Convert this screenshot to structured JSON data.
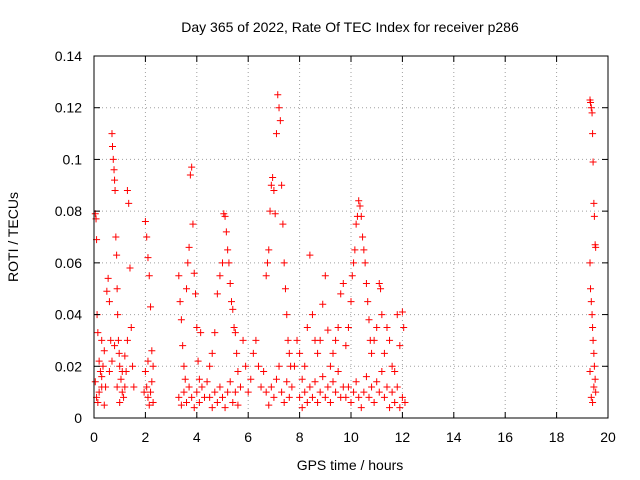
{
  "chart_data": {
    "type": "scatter",
    "title": "Day 365 of 2022, Rate Of TEC Index for receiver p286",
    "xlabel": "GPS time / hours",
    "ylabel": "ROTI / TECUs",
    "xlim": [
      0,
      20
    ],
    "ylim": [
      0,
      0.14
    ],
    "x_ticks": [
      0,
      2,
      4,
      6,
      8,
      10,
      12,
      14,
      16,
      18,
      20
    ],
    "y_ticks": [
      0,
      0.02,
      0.04,
      0.06,
      0.08,
      0.1,
      0.12,
      0.14
    ],
    "x_tick_labels": [
      "0",
      "2",
      "4",
      "6",
      "8",
      "10",
      "12",
      "14",
      "16",
      "18",
      "20"
    ],
    "y_tick_labels": [
      "0",
      "0.02",
      "0.04",
      "0.06",
      "0.08",
      "0.1",
      "0.12",
      "0.14"
    ],
    "grid": true,
    "marker": "+",
    "color": "#ff0000",
    "points": [
      [
        0.05,
        0.079
      ],
      [
        0.08,
        0.077
      ],
      [
        0.1,
        0.069
      ],
      [
        0.12,
        0.04
      ],
      [
        0.15,
        0.033
      ],
      [
        0.2,
        0.022
      ],
      [
        0.25,
        0.018
      ],
      [
        0.3,
        0.012
      ],
      [
        0.05,
        0.014
      ],
      [
        0.1,
        0.008
      ],
      [
        0.15,
        0.006
      ],
      [
        0.2,
        0.01
      ],
      [
        0.3,
        0.016
      ],
      [
        0.35,
        0.02
      ],
      [
        0.4,
        0.005
      ],
      [
        0.45,
        0.012
      ],
      [
        0.5,
        0.049
      ],
      [
        0.55,
        0.054
      ],
      [
        0.6,
        0.045
      ],
      [
        0.65,
        0.03
      ],
      [
        0.7,
        0.11
      ],
      [
        0.72,
        0.105
      ],
      [
        0.75,
        0.1
      ],
      [
        0.78,
        0.096
      ],
      [
        0.8,
        0.092
      ],
      [
        0.82,
        0.088
      ],
      [
        0.85,
        0.07
      ],
      [
        0.88,
        0.063
      ],
      [
        0.9,
        0.05
      ],
      [
        0.92,
        0.04
      ],
      [
        0.95,
        0.03
      ],
      [
        0.98,
        0.025
      ],
      [
        1.0,
        0.02
      ],
      [
        1.05,
        0.015
      ],
      [
        1.1,
        0.01
      ],
      [
        1.15,
        0.008
      ],
      [
        1.2,
        0.012
      ],
      [
        1.25,
        0.018
      ],
      [
        1.3,
        0.088
      ],
      [
        1.35,
        0.083
      ],
      [
        1.4,
        0.058
      ],
      [
        1.45,
        0.035
      ],
      [
        1.5,
        0.02
      ],
      [
        1.55,
        0.012
      ],
      [
        0.6,
        0.018
      ],
      [
        0.7,
        0.022
      ],
      [
        0.8,
        0.028
      ],
      [
        0.9,
        0.012
      ],
      [
        1.0,
        0.006
      ],
      [
        1.1,
        0.018
      ],
      [
        1.2,
        0.024
      ],
      [
        1.3,
        0.03
      ],
      [
        0.4,
        0.026
      ],
      [
        0.3,
        0.03
      ],
      [
        2.0,
        0.076
      ],
      [
        2.05,
        0.07
      ],
      [
        2.1,
        0.062
      ],
      [
        2.15,
        0.055
      ],
      [
        2.2,
        0.043
      ],
      [
        2.25,
        0.026
      ],
      [
        2.3,
        0.02
      ],
      [
        2.0,
        0.018
      ],
      [
        2.05,
        0.012
      ],
      [
        2.1,
        0.008
      ],
      [
        2.15,
        0.005
      ],
      [
        2.2,
        0.01
      ],
      [
        2.25,
        0.014
      ],
      [
        2.3,
        0.006
      ],
      [
        2.1,
        0.022
      ],
      [
        1.95,
        0.01
      ],
      [
        3.3,
        0.055
      ],
      [
        3.35,
        0.045
      ],
      [
        3.4,
        0.038
      ],
      [
        3.45,
        0.028
      ],
      [
        3.5,
        0.02
      ],
      [
        3.55,
        0.015
      ],
      [
        3.6,
        0.05
      ],
      [
        3.65,
        0.06
      ],
      [
        3.7,
        0.066
      ],
      [
        3.75,
        0.094
      ],
      [
        3.8,
        0.097
      ],
      [
        3.85,
        0.075
      ],
      [
        3.9,
        0.056
      ],
      [
        3.95,
        0.048
      ],
      [
        4.0,
        0.035
      ],
      [
        4.05,
        0.022
      ],
      [
        4.1,
        0.015
      ],
      [
        4.15,
        0.033
      ],
      [
        3.3,
        0.008
      ],
      [
        3.4,
        0.005
      ],
      [
        3.5,
        0.01
      ],
      [
        3.6,
        0.006
      ],
      [
        3.7,
        0.012
      ],
      [
        3.8,
        0.008
      ],
      [
        3.9,
        0.004
      ],
      [
        4.0,
        0.01
      ],
      [
        4.1,
        0.006
      ],
      [
        4.2,
        0.012
      ],
      [
        4.3,
        0.008
      ],
      [
        4.4,
        0.014
      ],
      [
        4.5,
        0.02
      ],
      [
        4.6,
        0.025
      ],
      [
        4.7,
        0.033
      ],
      [
        4.8,
        0.048
      ],
      [
        4.9,
        0.055
      ],
      [
        5.0,
        0.06
      ],
      [
        5.05,
        0.079
      ],
      [
        5.1,
        0.078
      ],
      [
        5.15,
        0.072
      ],
      [
        5.2,
        0.065
      ],
      [
        5.25,
        0.06
      ],
      [
        5.3,
        0.052
      ],
      [
        5.35,
        0.045
      ],
      [
        5.4,
        0.042
      ],
      [
        5.45,
        0.035
      ],
      [
        5.5,
        0.033
      ],
      [
        5.55,
        0.025
      ],
      [
        5.6,
        0.018
      ],
      [
        4.5,
        0.008
      ],
      [
        4.6,
        0.004
      ],
      [
        4.7,
        0.01
      ],
      [
        4.8,
        0.006
      ],
      [
        4.9,
        0.012
      ],
      [
        5.0,
        0.008
      ],
      [
        5.1,
        0.004
      ],
      [
        5.2,
        0.01
      ],
      [
        5.3,
        0.014
      ],
      [
        5.4,
        0.006
      ],
      [
        5.5,
        0.01
      ],
      [
        5.6,
        0.005
      ],
      [
        5.7,
        0.012
      ],
      [
        5.8,
        0.03
      ],
      [
        5.9,
        0.02
      ],
      [
        6.0,
        0.01
      ],
      [
        6.1,
        0.015
      ],
      [
        6.2,
        0.025
      ],
      [
        6.3,
        0.03
      ],
      [
        6.4,
        0.02
      ],
      [
        6.5,
        0.012
      ],
      [
        6.6,
        0.018
      ],
      [
        6.7,
        0.055
      ],
      [
        6.75,
        0.06
      ],
      [
        6.8,
        0.065
      ],
      [
        6.85,
        0.08
      ],
      [
        6.9,
        0.09
      ],
      [
        6.95,
        0.093
      ],
      [
        7.0,
        0.088
      ],
      [
        7.05,
        0.079
      ],
      [
        7.1,
        0.11
      ],
      [
        7.15,
        0.125
      ],
      [
        7.2,
        0.12
      ],
      [
        7.25,
        0.115
      ],
      [
        7.3,
        0.09
      ],
      [
        7.35,
        0.075
      ],
      [
        7.4,
        0.06
      ],
      [
        7.45,
        0.05
      ],
      [
        7.5,
        0.04
      ],
      [
        7.55,
        0.03
      ],
      [
        7.6,
        0.025
      ],
      [
        7.65,
        0.02
      ],
      [
        6.7,
        0.01
      ],
      [
        6.8,
        0.005
      ],
      [
        6.9,
        0.012
      ],
      [
        7.0,
        0.008
      ],
      [
        7.1,
        0.015
      ],
      [
        7.2,
        0.02
      ],
      [
        7.3,
        0.01
      ],
      [
        7.4,
        0.006
      ],
      [
        7.5,
        0.014
      ],
      [
        7.6,
        0.008
      ],
      [
        7.7,
        0.012
      ],
      [
        7.8,
        0.02
      ],
      [
        7.9,
        0.03
      ],
      [
        8.0,
        0.025
      ],
      [
        8.1,
        0.015
      ],
      [
        8.2,
        0.02
      ],
      [
        8.3,
        0.035
      ],
      [
        8.4,
        0.063
      ],
      [
        8.5,
        0.04
      ],
      [
        8.6,
        0.03
      ],
      [
        8.7,
        0.025
      ],
      [
        8.8,
        0.03
      ],
      [
        8.9,
        0.044
      ],
      [
        9.0,
        0.055
      ],
      [
        9.1,
        0.034
      ],
      [
        9.2,
        0.02
      ],
      [
        9.3,
        0.025
      ],
      [
        9.4,
        0.03
      ],
      [
        9.5,
        0.035
      ],
      [
        9.6,
        0.048
      ],
      [
        9.7,
        0.052
      ],
      [
        8.0,
        0.008
      ],
      [
        8.1,
        0.004
      ],
      [
        8.2,
        0.01
      ],
      [
        8.3,
        0.006
      ],
      [
        8.4,
        0.012
      ],
      [
        8.5,
        0.008
      ],
      [
        8.6,
        0.014
      ],
      [
        8.7,
        0.006
      ],
      [
        8.8,
        0.01
      ],
      [
        8.9,
        0.016
      ],
      [
        9.0,
        0.008
      ],
      [
        9.1,
        0.012
      ],
      [
        9.2,
        0.006
      ],
      [
        9.3,
        0.014
      ],
      [
        9.4,
        0.01
      ],
      [
        9.5,
        0.018
      ],
      [
        9.6,
        0.008
      ],
      [
        9.7,
        0.012
      ],
      [
        9.8,
        0.028
      ],
      [
        9.9,
        0.035
      ],
      [
        10.0,
        0.045
      ],
      [
        10.05,
        0.055
      ],
      [
        10.1,
        0.06
      ],
      [
        10.15,
        0.065
      ],
      [
        10.2,
        0.075
      ],
      [
        10.25,
        0.078
      ],
      [
        10.3,
        0.084
      ],
      [
        10.35,
        0.082
      ],
      [
        10.4,
        0.078
      ],
      [
        10.45,
        0.07
      ],
      [
        10.5,
        0.065
      ],
      [
        10.55,
        0.06
      ],
      [
        10.6,
        0.052
      ],
      [
        10.65,
        0.045
      ],
      [
        10.7,
        0.038
      ],
      [
        10.75,
        0.03
      ],
      [
        10.8,
        0.025
      ],
      [
        10.9,
        0.03
      ],
      [
        11.0,
        0.035
      ],
      [
        11.1,
        0.052
      ],
      [
        11.15,
        0.05
      ],
      [
        11.2,
        0.04
      ],
      [
        11.3,
        0.025
      ],
      [
        11.4,
        0.035
      ],
      [
        11.5,
        0.03
      ],
      [
        11.6,
        0.02
      ],
      [
        11.7,
        0.018
      ],
      [
        11.8,
        0.04
      ],
      [
        11.9,
        0.028
      ],
      [
        12.0,
        0.041
      ],
      [
        12.05,
        0.035
      ],
      [
        9.8,
        0.008
      ],
      [
        9.9,
        0.012
      ],
      [
        10.0,
        0.006
      ],
      [
        10.1,
        0.01
      ],
      [
        10.2,
        0.014
      ],
      [
        10.3,
        0.008
      ],
      [
        10.4,
        0.004
      ],
      [
        10.5,
        0.01
      ],
      [
        10.6,
        0.016
      ],
      [
        10.7,
        0.008
      ],
      [
        10.8,
        0.012
      ],
      [
        10.9,
        0.006
      ],
      [
        11.0,
        0.014
      ],
      [
        11.1,
        0.01
      ],
      [
        11.2,
        0.018
      ],
      [
        11.3,
        0.008
      ],
      [
        11.4,
        0.012
      ],
      [
        11.5,
        0.004
      ],
      [
        11.6,
        0.01
      ],
      [
        11.7,
        0.006
      ],
      [
        11.8,
        0.012
      ],
      [
        11.9,
        0.004
      ],
      [
        12.0,
        0.008
      ],
      [
        12.1,
        0.006
      ],
      [
        19.3,
        0.123
      ],
      [
        19.32,
        0.122
      ],
      [
        19.35,
        0.12
      ],
      [
        19.38,
        0.118
      ],
      [
        19.4,
        0.11
      ],
      [
        19.42,
        0.099
      ],
      [
        19.45,
        0.083
      ],
      [
        19.47,
        0.078
      ],
      [
        19.5,
        0.067
      ],
      [
        19.52,
        0.066
      ],
      [
        19.3,
        0.06
      ],
      [
        19.32,
        0.05
      ],
      [
        19.35,
        0.045
      ],
      [
        19.38,
        0.04
      ],
      [
        19.4,
        0.035
      ],
      [
        19.42,
        0.03
      ],
      [
        19.45,
        0.025
      ],
      [
        19.47,
        0.02
      ],
      [
        19.5,
        0.015
      ],
      [
        19.52,
        0.01
      ],
      [
        19.4,
        0.006
      ],
      [
        19.35,
        0.008
      ],
      [
        19.45,
        0.012
      ],
      [
        19.3,
        0.018
      ]
    ]
  }
}
